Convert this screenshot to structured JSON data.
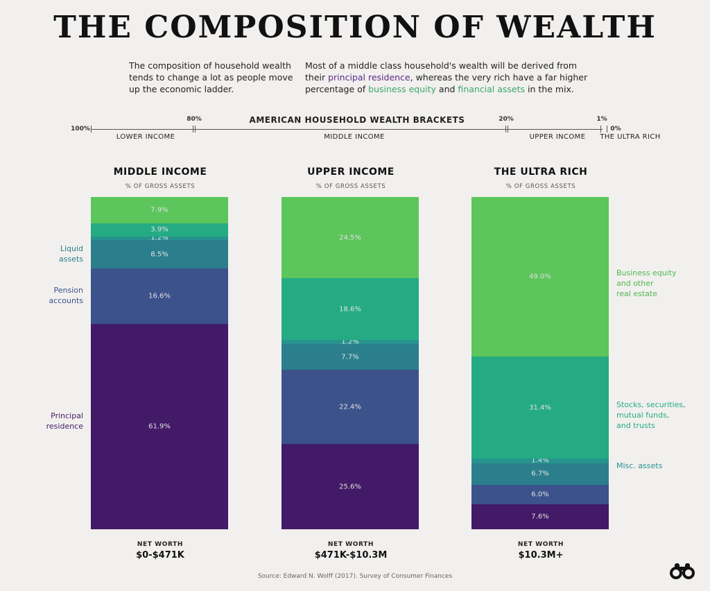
{
  "title": "THE COMPOSITION OF WEALTH",
  "intro_left": "The composition of household wealth tends to change a lot as people move up the economic ladder.",
  "intro_right": {
    "part1": "Most of a middle class household's wealth will be derived from their ",
    "principal_residence": "principal residence",
    "part2": ", whereas the very rich have a far higher percentage of ",
    "business_equity": "business equity",
    "part3": " and ",
    "financial_assets": "financial assets",
    "part4": " in the mix."
  },
  "brackets": {
    "title": "AMERICAN HOUSEHOLD WEALTH BRACKETS",
    "ticks": [
      "100%",
      "80%",
      "20%",
      "1%",
      "0%"
    ],
    "segments": [
      "LOWER INCOME",
      "MIDDLE INCOME",
      "UPPER INCOME",
      "THE ULTRA RICH"
    ]
  },
  "colors": {
    "principal_residence": "#421a67",
    "pension_accounts": "#3b528b",
    "liquid_assets": "#2b7f8c",
    "misc_assets": "#27938e",
    "stocks": "#25ab83",
    "business_equity": "#5cc55b"
  },
  "chart_data": {
    "type": "bar",
    "stacked": true,
    "subtitle": "% OF GROSS ASSETS",
    "categories": [
      "MIDDLE INCOME",
      "UPPER INCOME",
      "THE ULTRA RICH"
    ],
    "series": [
      {
        "name": "Principal residence",
        "values": [
          61.9,
          25.6,
          7.6
        ]
      },
      {
        "name": "Pension accounts",
        "values": [
          16.6,
          22.4,
          6.0
        ]
      },
      {
        "name": "Liquid assets",
        "values": [
          8.5,
          7.7,
          6.7
        ]
      },
      {
        "name": "Misc. assets",
        "values": [
          1.2,
          1.2,
          1.4
        ]
      },
      {
        "name": "Stocks, securities, mutual funds, and trusts",
        "values": [
          3.9,
          18.6,
          31.4
        ]
      },
      {
        "name": "Business equity and other real estate",
        "values": [
          7.9,
          24.5,
          49.0
        ]
      }
    ],
    "value_labels": [
      [
        "61.9%",
        "16.6%",
        "8.5%",
        "1.2%",
        "3.9%",
        "7.9%"
      ],
      [
        "25.6%",
        "22.4%",
        "7.7%",
        "1.2%",
        "18.6%",
        "24.5%"
      ],
      [
        "7.6%",
        "6.0%",
        "6.7%",
        "1.4%",
        "31.4%",
        "49.0%"
      ]
    ],
    "left_labels": {
      "liquid": [
        "Liquid",
        "assets"
      ],
      "pension": [
        "Pension",
        "accounts"
      ],
      "principal": [
        "Principal",
        "residence"
      ]
    },
    "right_labels": {
      "business": [
        "Business equity",
        "and other",
        "real estate"
      ],
      "stocks": [
        "Stocks, securities,",
        "mutual funds,",
        "and trusts"
      ],
      "misc": [
        "Misc. assets"
      ]
    },
    "net_worth_label": "NET WORTH",
    "net_worth": [
      "$0-$471K",
      "$471K-$10.3M",
      "$10.3M+"
    ]
  },
  "source": "Source: Edward N. Wolff (2017). Survey of Consumer Finances"
}
